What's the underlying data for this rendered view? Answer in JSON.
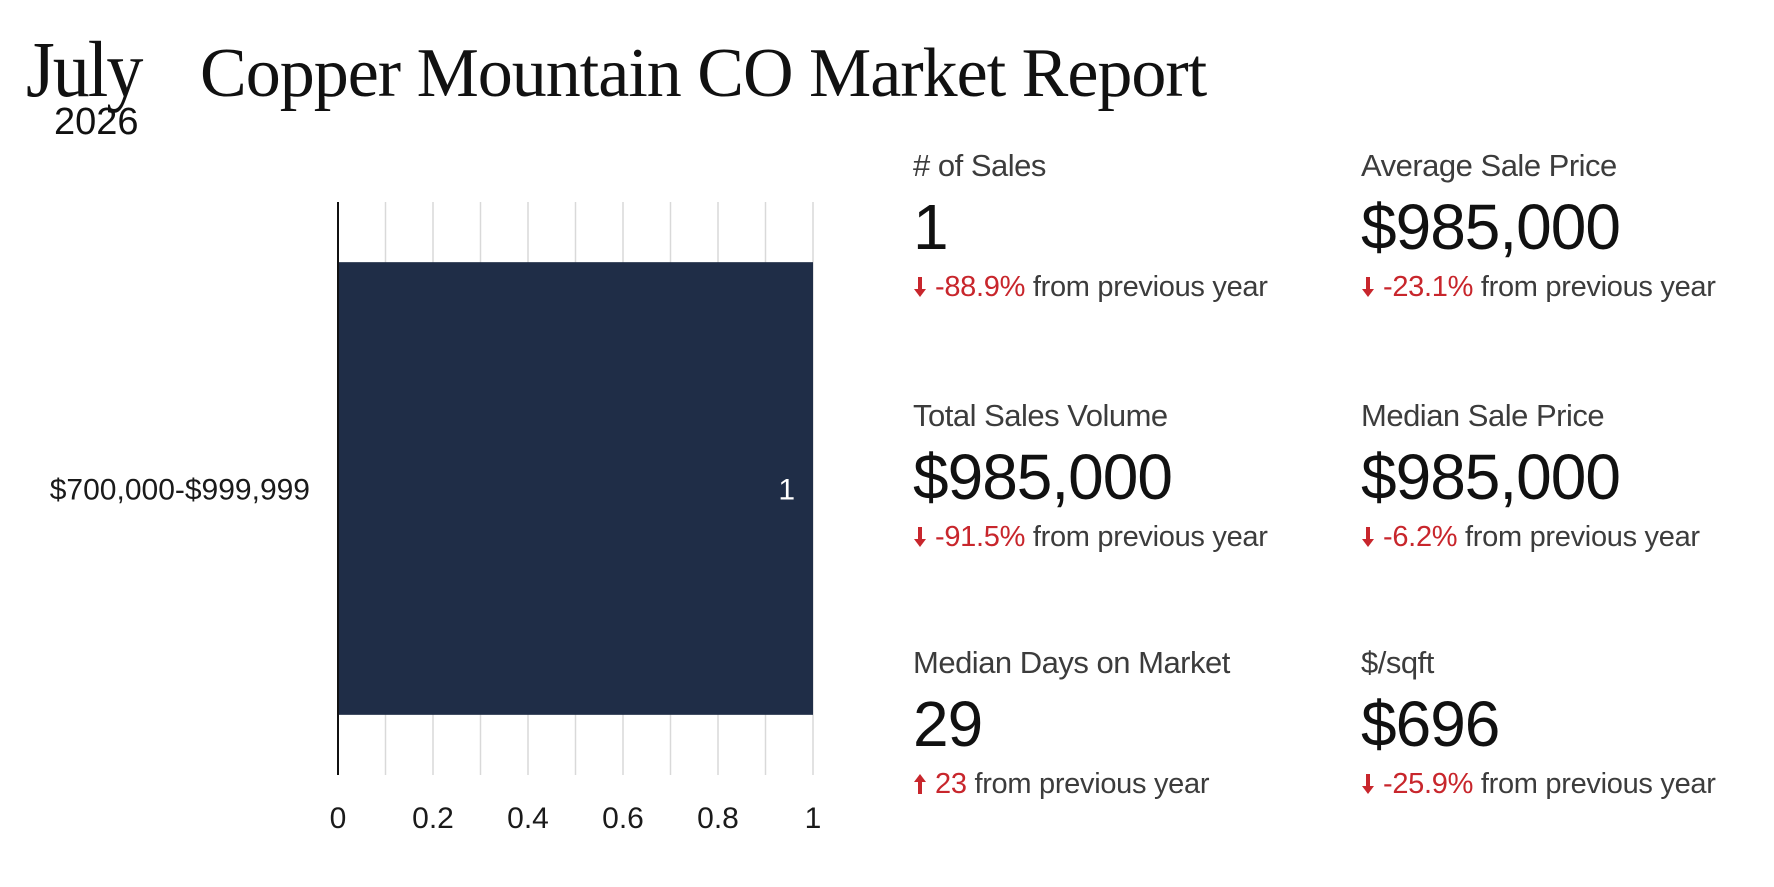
{
  "header": {
    "month": "July",
    "year": "2026",
    "title": "Copper Mountain CO Market Report"
  },
  "chart_data": {
    "type": "bar",
    "orientation": "horizontal",
    "categories": [
      "$700,000-$999,999"
    ],
    "values": [
      1
    ],
    "data_labels": [
      "1"
    ],
    "xlim": [
      0,
      1
    ],
    "x_ticks": [
      "0",
      "0.2",
      "0.4",
      "0.6",
      "0.8",
      "1"
    ],
    "grid": true,
    "bar_color": "#1f2d47"
  },
  "colors": {
    "negative": "#c8262c",
    "positive": "#c8262c"
  },
  "stats": [
    {
      "label": "# of Sales",
      "value": "1",
      "direction": "down",
      "change": "-88.9%",
      "suffix": "from previous year"
    },
    {
      "label": "Average Sale Price",
      "value": "$985,000",
      "direction": "down",
      "change": "-23.1%",
      "suffix": "from previous year"
    },
    {
      "label": "Total Sales Volume",
      "value": "$985,000",
      "direction": "down",
      "change": "-91.5%",
      "suffix": "from previous year"
    },
    {
      "label": "Median Sale Price",
      "value": "$985,000",
      "direction": "down",
      "change": "-6.2%",
      "suffix": "from previous year"
    },
    {
      "label": "Median Days on Market",
      "value": "29",
      "direction": "up",
      "change": "23",
      "suffix": "from previous year"
    },
    {
      "label": "$/sqft",
      "value": "$696",
      "direction": "down",
      "change": "-25.9%",
      "suffix": "from previous year"
    }
  ]
}
